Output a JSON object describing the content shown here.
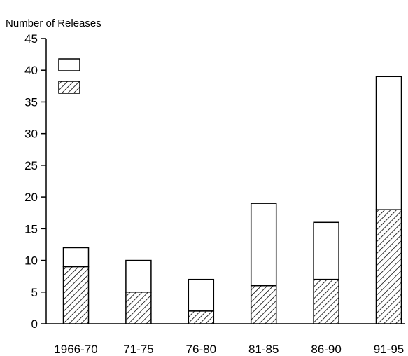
{
  "chart_data": {
    "type": "bar",
    "ylabel": "Number of Releases",
    "categories": [
      "1966-70",
      "71-75",
      "76-80",
      "81-85",
      "86-90",
      "91-95"
    ],
    "series": [
      {
        "pattern": "hatched",
        "values": [
          9,
          5,
          2,
          6,
          7,
          18
        ]
      },
      {
        "pattern": "open",
        "values": [
          3,
          5,
          5,
          13,
          9,
          21
        ]
      }
    ],
    "totals": [
      12,
      10,
      7,
      19,
      16,
      39
    ],
    "ylim": [
      0,
      45
    ],
    "yticks": [
      0,
      5,
      10,
      15,
      20,
      25,
      30,
      35,
      40,
      45
    ],
    "stacked": true,
    "grid": false,
    "legend": {
      "placement": "top-left",
      "entries": [
        {
          "pattern": "open",
          "label": ""
        },
        {
          "pattern": "hatched",
          "label": ""
        }
      ]
    },
    "colors": {
      "ink": "#000000",
      "background": "#ffffff"
    }
  }
}
